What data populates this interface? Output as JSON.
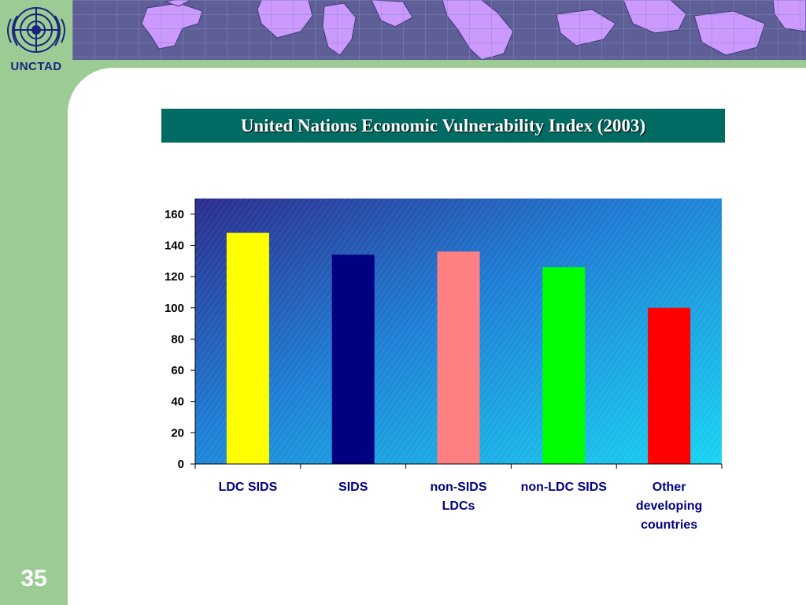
{
  "header": {
    "logo_text": "UNCTAD"
  },
  "slide": {
    "number": "35"
  },
  "colors": {
    "sidebar": "#9ccc94",
    "banner": "#5f5f98",
    "continents": "#cc99ff",
    "title_bg": "#006b63",
    "category_text": "#000080"
  },
  "chart_data": {
    "type": "bar",
    "title": "United Nations Economic Vulnerability Index (2003)",
    "categories": [
      [
        "LDC SIDS"
      ],
      [
        "SIDS"
      ],
      [
        "non-SIDS",
        "LDCs"
      ],
      [
        "non-LDC SIDS"
      ],
      [
        "Other",
        "developing",
        "countries"
      ]
    ],
    "values": [
      148,
      134,
      136,
      126,
      100
    ],
    "bar_colors": [
      "#ffff00",
      "#000080",
      "#ff8080",
      "#00ff00",
      "#ff0000"
    ],
    "ylim": [
      0,
      160
    ],
    "yticks": [
      0,
      20,
      40,
      60,
      80,
      100,
      120,
      140,
      160
    ],
    "xlabel": "",
    "ylabel": "",
    "grid": false,
    "legend": "none"
  }
}
